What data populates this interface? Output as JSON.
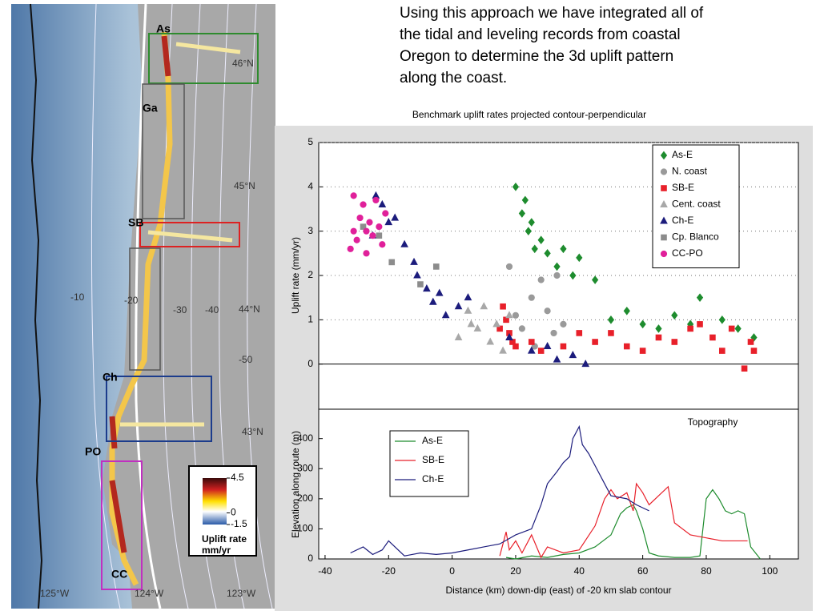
{
  "slide": {
    "body_lines": [
      "Using this approach we have integrated all of",
      "the tidal and leveling records from coastal",
      "Oregon to determine the 3d uplift pattern",
      "along the coast."
    ]
  },
  "map": {
    "sites": [
      "As",
      "Ga",
      "SB",
      "Ch",
      "PO",
      "CC"
    ],
    "contours": [
      "-10",
      "-20",
      "-30",
      "-40",
      "-50"
    ],
    "latitudes": [
      "46°N",
      "45°N",
      "44°N",
      "43°N"
    ],
    "longitudes": [
      "125°W",
      "124°W",
      "123°W"
    ],
    "colorbar": {
      "ticks": [
        4.5,
        0,
        -1.5
      ],
      "lim": [
        -1.5,
        4.5
      ],
      "label": "Uplift rate",
      "unit": "mm/yr"
    }
  },
  "chart_data": [
    {
      "type": "scatter",
      "title": "Benchmark uplift rates projected contour-perpendicular",
      "ylabel": "Uplift rate (mm/yr)",
      "xlim": [
        -42,
        109
      ],
      "ylim": [
        -1,
        5
      ],
      "yticks": [
        0,
        1,
        2,
        3,
        4,
        5
      ],
      "grid": true,
      "legend": "upper right",
      "series": [
        {
          "name": "As-E",
          "color": "#1e8c2e",
          "marker": "diamond",
          "x": [
            20,
            22,
            23,
            24,
            25,
            26,
            28,
            30,
            33,
            35,
            38,
            40,
            45,
            50,
            55,
            60,
            65,
            70,
            75,
            78,
            85,
            90,
            95
          ],
          "values": [
            4.0,
            3.4,
            3.7,
            3.0,
            3.2,
            2.6,
            2.8,
            2.5,
            2.2,
            2.6,
            2.0,
            2.4,
            1.9,
            1.0,
            1.2,
            0.9,
            0.8,
            1.1,
            0.9,
            1.5,
            1.0,
            0.8,
            0.6
          ]
        },
        {
          "name": "N. coast",
          "color": "#9a9a9a",
          "marker": "circle",
          "x": [
            20,
            22,
            25,
            28,
            30,
            32,
            35,
            18,
            26,
            33
          ],
          "values": [
            1.1,
            0.8,
            1.5,
            1.9,
            1.2,
            0.7,
            0.9,
            2.2,
            0.4,
            2.0
          ]
        },
        {
          "name": "SB-E",
          "color": "#e8202a",
          "marker": "square",
          "x": [
            15,
            16,
            17,
            18,
            19,
            20,
            25,
            28,
            35,
            40,
            45,
            50,
            55,
            60,
            65,
            70,
            75,
            78,
            82,
            85,
            88,
            92,
            94,
            95
          ],
          "values": [
            0.8,
            1.3,
            1.0,
            0.7,
            0.5,
            0.4,
            0.5,
            0.3,
            0.4,
            0.7,
            0.5,
            0.7,
            0.4,
            0.3,
            0.6,
            0.5,
            0.8,
            0.9,
            0.6,
            0.3,
            0.8,
            -0.1,
            0.5,
            0.3
          ]
        },
        {
          "name": "Cent. coast",
          "color": "#a8a8a8",
          "marker": "triangle",
          "x": [
            2,
            5,
            8,
            10,
            12,
            14,
            16,
            18,
            6
          ],
          "values": [
            0.6,
            1.2,
            0.8,
            1.3,
            0.5,
            0.9,
            0.3,
            1.1,
            0.9
          ]
        },
        {
          "name": "Ch-E",
          "color": "#1c1c7c",
          "marker": "triangle",
          "x": [
            -24,
            -22,
            -20,
            -18,
            -25,
            -15,
            -12,
            -11,
            -8,
            -6,
            -4,
            -2,
            2,
            5,
            18,
            25,
            30,
            33,
            38,
            42
          ],
          "values": [
            3.8,
            3.6,
            3.2,
            3.3,
            2.9,
            2.7,
            2.3,
            2.0,
            1.7,
            1.4,
            1.6,
            1.1,
            1.3,
            1.5,
            0.6,
            0.3,
            0.4,
            0.1,
            0.2,
            0.0
          ]
        },
        {
          "name": "Cp. Blanco",
          "color": "#8c8c8c",
          "marker": "square",
          "x": [
            -28,
            -23,
            -19,
            -10,
            -5
          ],
          "values": [
            3.1,
            2.9,
            2.3,
            1.8,
            2.2
          ]
        },
        {
          "name": "CC-PO",
          "color": "#e0209a",
          "marker": "circle",
          "x": [
            -32,
            -31,
            -30,
            -29,
            -28,
            -27,
            -26,
            -25,
            -24,
            -23,
            -22,
            -21,
            -31,
            -27
          ],
          "values": [
            2.6,
            3.0,
            2.8,
            3.3,
            3.6,
            3.0,
            3.2,
            2.9,
            3.7,
            3.1,
            2.7,
            3.4,
            3.8,
            2.5
          ]
        }
      ]
    },
    {
      "type": "line",
      "annotation": "Topography",
      "ylabel": "Elevation along route (m)",
      "xlabel": "Distance (km) down-dip (east) of -20 km slab contour",
      "xlim": [
        -42,
        109
      ],
      "xticks": [
        -40,
        -20,
        0,
        20,
        40,
        60,
        80,
        100
      ],
      "ylim": [
        0,
        495
      ],
      "yticks": [
        0,
        100,
        200,
        300,
        400
      ],
      "legend": "upper left",
      "series": [
        {
          "name": "As-E",
          "color": "#1e8c2e",
          "x": [
            17,
            20,
            25,
            30,
            35,
            40,
            45,
            50,
            53,
            55,
            57,
            58,
            60,
            62,
            65,
            70,
            75,
            78,
            80,
            82,
            84,
            86,
            88,
            90,
            92,
            94,
            97
          ],
          "values": [
            5,
            0,
            10,
            5,
            15,
            20,
            40,
            80,
            150,
            170,
            180,
            160,
            100,
            20,
            10,
            5,
            5,
            10,
            200,
            230,
            200,
            160,
            150,
            160,
            150,
            40,
            0
          ]
        },
        {
          "name": "SB-E",
          "color": "#e8202a",
          "x": [
            15,
            16,
            17,
            18,
            20,
            22,
            25,
            28,
            30,
            35,
            40,
            45,
            48,
            50,
            52,
            55,
            57,
            58,
            60,
            62,
            65,
            68,
            70,
            75,
            80,
            85,
            90,
            93
          ],
          "values": [
            10,
            50,
            90,
            30,
            60,
            20,
            80,
            5,
            40,
            20,
            30,
            110,
            200,
            230,
            200,
            220,
            160,
            250,
            220,
            180,
            210,
            240,
            120,
            80,
            70,
            60,
            60,
            60
          ]
        },
        {
          "name": "Ch-E",
          "color": "#1c1c7c",
          "x": [
            -32,
            -28,
            -25,
            -22,
            -20,
            -15,
            -10,
            -5,
            0,
            5,
            10,
            15,
            20,
            25,
            28,
            30,
            33,
            35,
            37,
            38,
            40,
            41,
            43,
            45,
            48,
            50,
            55,
            58,
            60,
            62
          ],
          "values": [
            20,
            40,
            15,
            30,
            60,
            10,
            20,
            15,
            20,
            30,
            40,
            50,
            80,
            100,
            180,
            250,
            290,
            320,
            340,
            400,
            440,
            380,
            350,
            310,
            250,
            210,
            200,
            180,
            170,
            160
          ]
        }
      ]
    }
  ]
}
